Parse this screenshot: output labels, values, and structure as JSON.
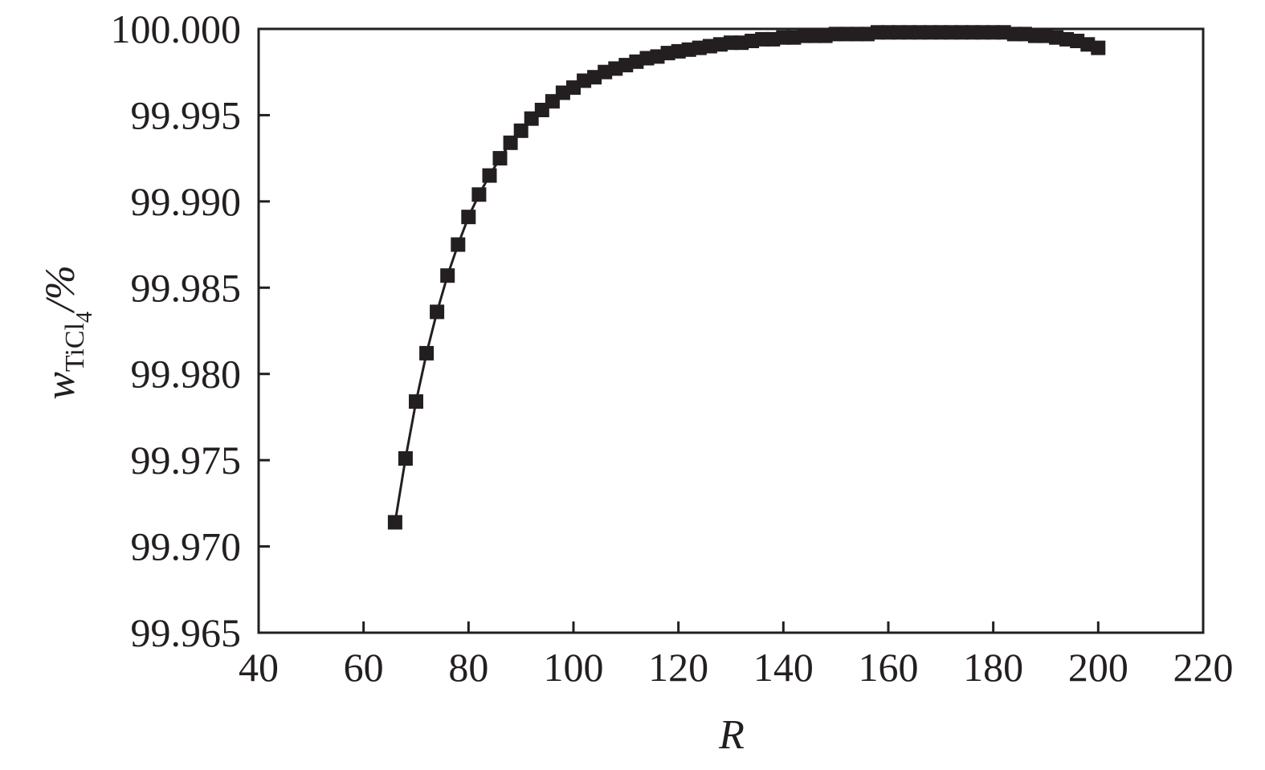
{
  "chart_data": {
    "type": "scatter",
    "title": "",
    "xlabel": "R",
    "ylabel": {
      "main": "w",
      "subscript": "TiCl",
      "subsubscript": "4",
      "suffix": "/%"
    },
    "xlim": [
      40,
      220
    ],
    "ylim": [
      99.965,
      100.0
    ],
    "x_ticks": [
      40,
      60,
      80,
      100,
      120,
      140,
      160,
      180,
      200,
      220
    ],
    "x_tick_labels": [
      "40",
      "60",
      "80",
      "100",
      "120",
      "140",
      "160",
      "180",
      "200",
      "220"
    ],
    "y_ticks": [
      99.965,
      99.97,
      99.975,
      99.98,
      99.985,
      99.99,
      99.995,
      100.0
    ],
    "y_tick_labels": [
      "99.965",
      "99.970",
      "99.975",
      "99.980",
      "99.985",
      "99.990",
      "99.995",
      "100.000"
    ],
    "grid": false,
    "legend": "none",
    "marker": "square",
    "line_style": "solid",
    "color": "#231f20",
    "series": [
      {
        "x": [
          66,
          68,
          70,
          72,
          74,
          76,
          78,
          80,
          82,
          84,
          86,
          88,
          90,
          92,
          94,
          96,
          98,
          100,
          102,
          104,
          106,
          108,
          110,
          112,
          114,
          116,
          118,
          120,
          122,
          124,
          126,
          128,
          130,
          132,
          134,
          136,
          138,
          140,
          142,
          144,
          146,
          148,
          150,
          152,
          154,
          156,
          158,
          160,
          162,
          164,
          166,
          168,
          170,
          172,
          174,
          176,
          178,
          180,
          182,
          184,
          186,
          188,
          190,
          192,
          194,
          196,
          198,
          200
        ],
        "y": [
          99.9714,
          99.9751,
          99.9784,
          99.9812,
          99.9836,
          99.9857,
          99.9875,
          99.9891,
          99.9904,
          99.9915,
          99.9925,
          99.9934,
          99.9941,
          99.9948,
          99.9953,
          99.9958,
          99.9963,
          99.9966,
          99.997,
          99.9972,
          99.9975,
          99.9977,
          99.9979,
          99.9981,
          99.9983,
          99.9984,
          99.9986,
          99.9987,
          99.9988,
          99.9989,
          99.999,
          99.9991,
          99.9992,
          99.9992,
          99.9993,
          99.9994,
          99.9994,
          99.9995,
          99.9995,
          99.9996,
          99.9996,
          99.9996,
          99.9997,
          99.9997,
          99.9997,
          99.9997,
          99.9998,
          99.9998,
          99.9998,
          99.9998,
          99.9998,
          99.9998,
          99.9998,
          99.9998,
          99.9998,
          99.9998,
          99.9998,
          99.9998,
          99.9998,
          99.9997,
          99.9997,
          99.9996,
          99.9996,
          99.9995,
          99.9994,
          99.9993,
          99.9991,
          99.9989
        ]
      }
    ]
  }
}
